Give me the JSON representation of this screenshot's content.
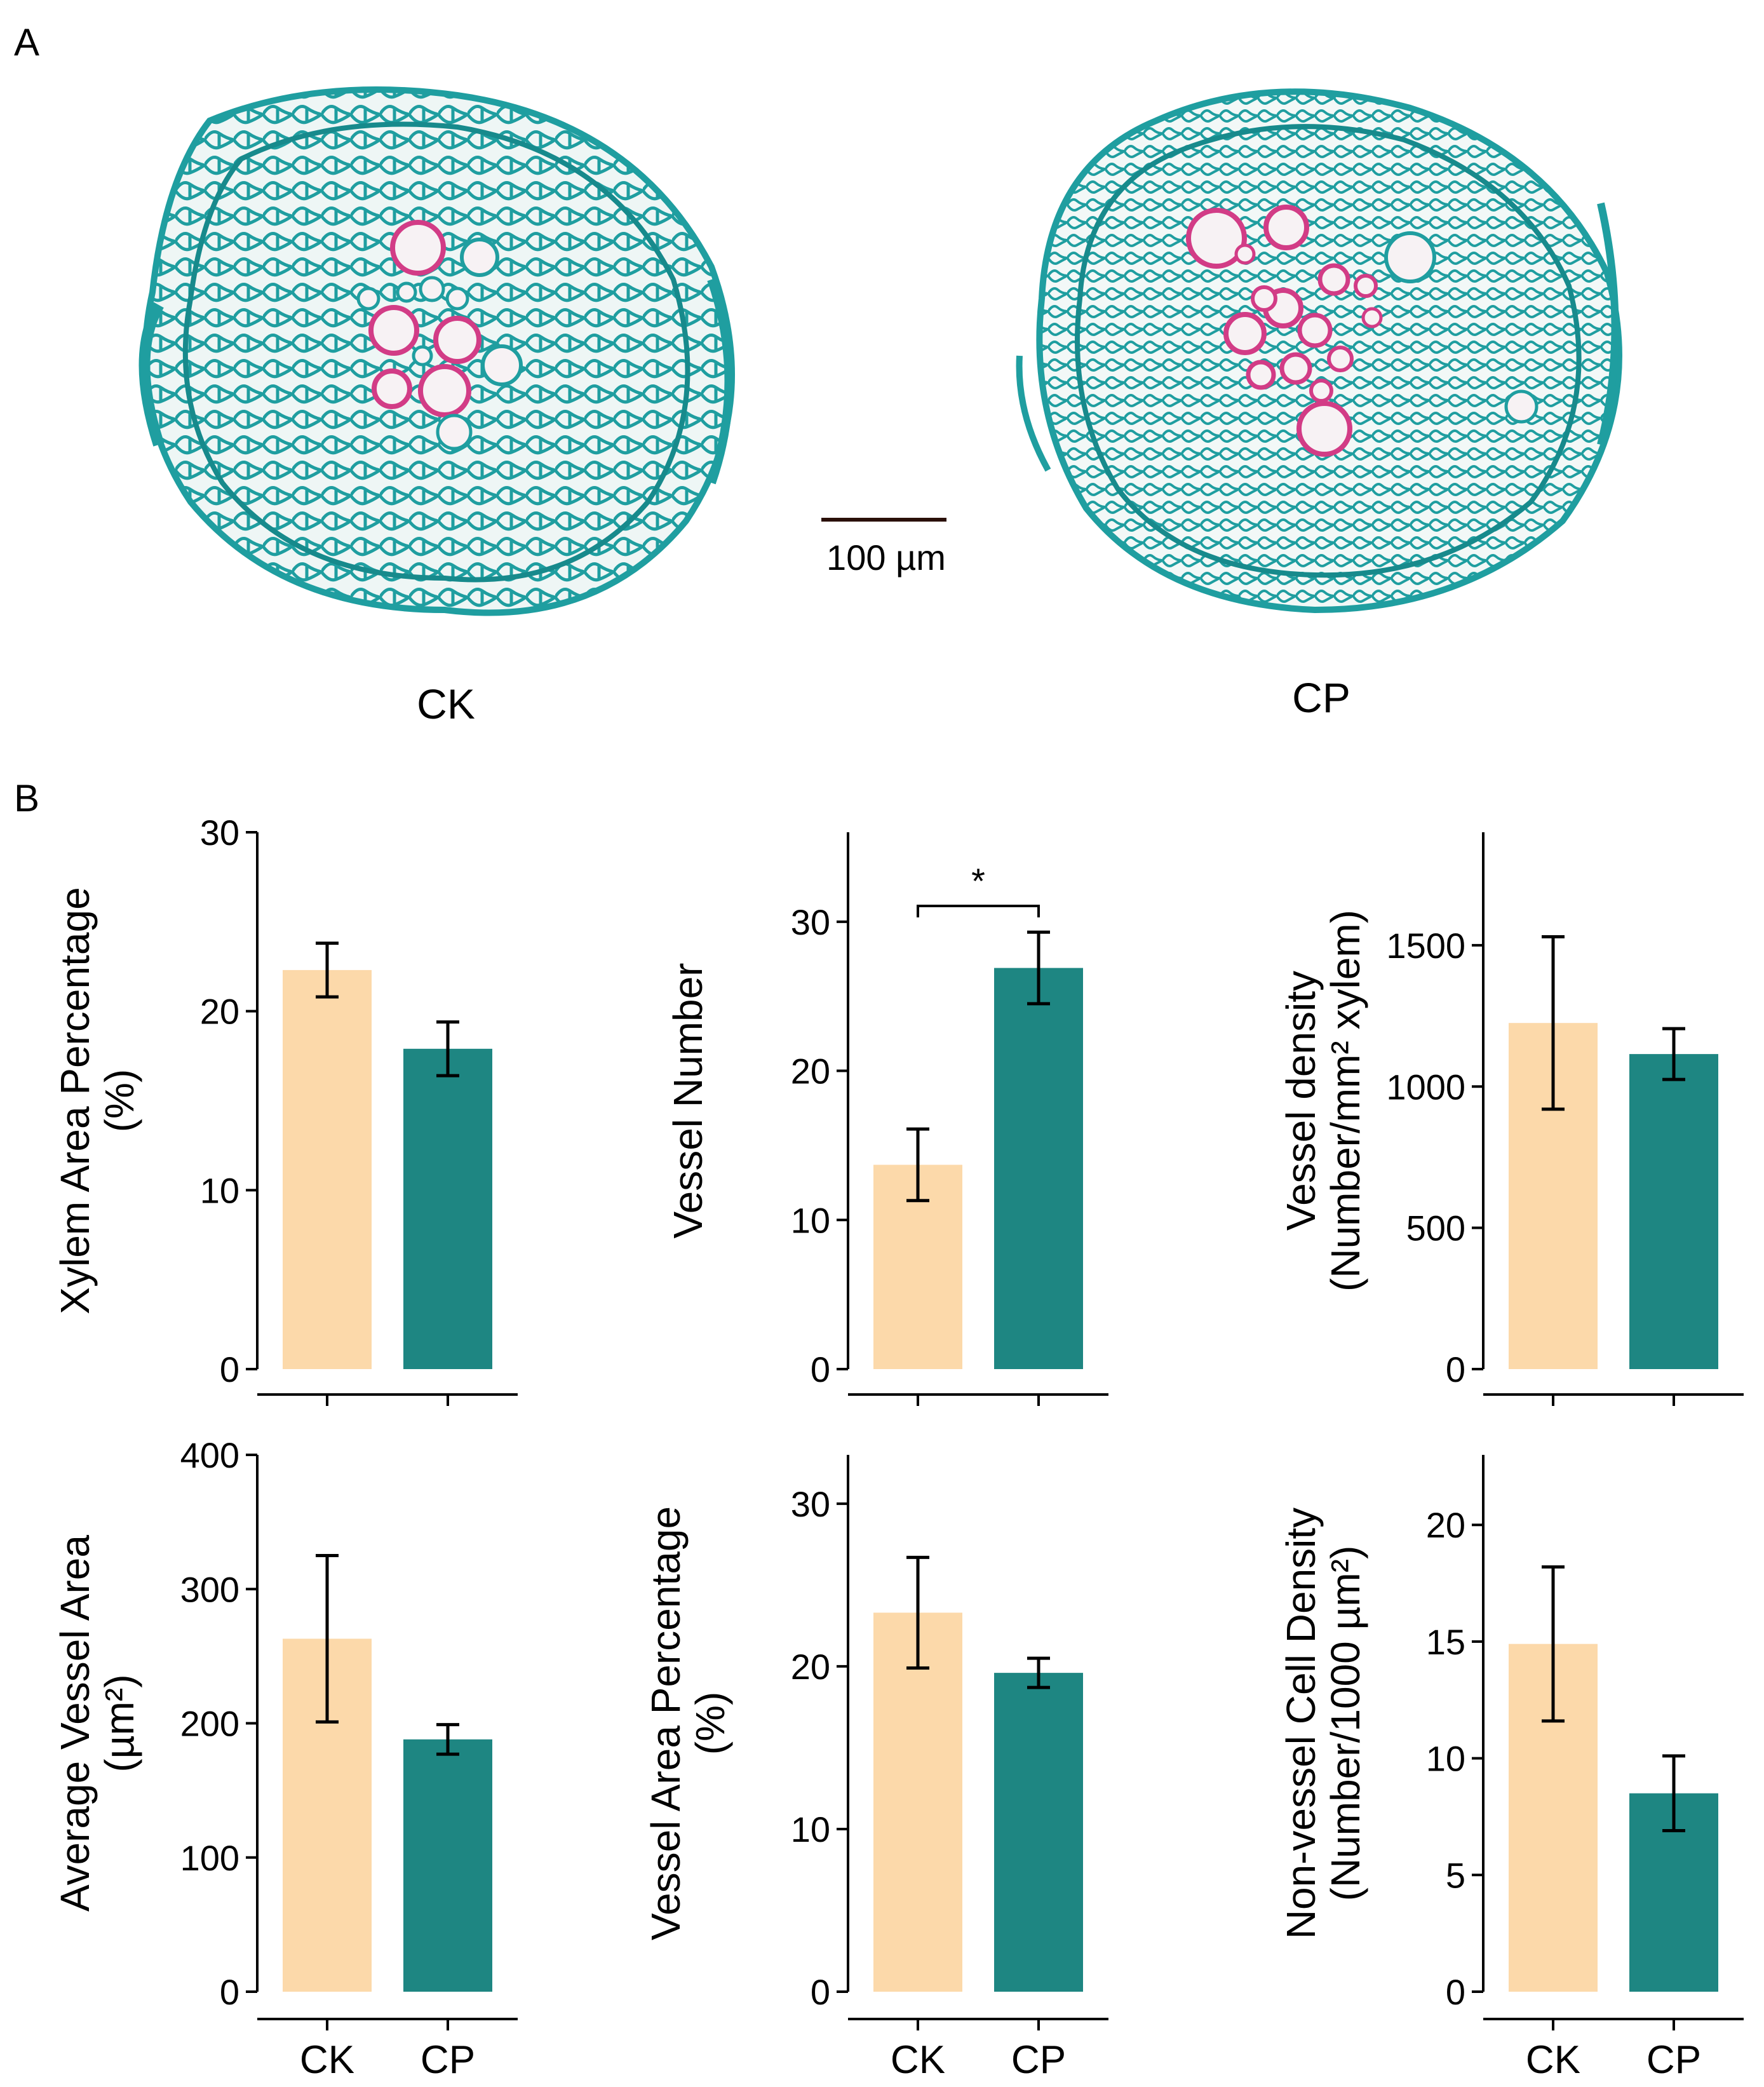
{
  "panel_a": {
    "letter": "A",
    "left_section_label": "CK",
    "right_section_label": "CP",
    "scale_bar_label": "100 µm",
    "colors": {
      "stain_cell_wall": "#1f9ea0",
      "stain_vessel": "#d23c86",
      "cell_fill": "#eef6f5",
      "scale_bar": "#2a0f08"
    }
  },
  "panel_b": {
    "letter": "B",
    "colors": {
      "CK": "#fcd9aa",
      "CP": "#1e8682",
      "axis": "#000000"
    }
  },
  "chart_data": [
    {
      "type": "bar",
      "ylabel": [
        "Xylem Area Percentage",
        "(%)"
      ],
      "categories": [
        "CK",
        "CP"
      ],
      "values": [
        22.3,
        17.9
      ],
      "errors": [
        1.5,
        1.5
      ],
      "ylim": [
        0,
        30
      ],
      "yticks": [
        0,
        10,
        20,
        30
      ],
      "show_xlabels": false,
      "significance": null
    },
    {
      "type": "bar",
      "ylabel": [
        "Vessel Number"
      ],
      "categories": [
        "CK",
        "CP"
      ],
      "values": [
        13.7,
        26.9
      ],
      "errors": [
        2.4,
        2.4
      ],
      "ylim": [
        0,
        36
      ],
      "yticks": [
        0,
        10,
        20,
        30
      ],
      "show_xlabels": false,
      "significance": "*"
    },
    {
      "type": "bar",
      "ylabel": [
        "Vessel density",
        "(Number/mm² xylem)"
      ],
      "categories": [
        "CK",
        "CP"
      ],
      "values": [
        1225,
        1115
      ],
      "errors": [
        305,
        90
      ],
      "ylim": [
        0,
        1900
      ],
      "yticks": [
        0,
        500,
        1000,
        1500
      ],
      "show_xlabels": false,
      "significance": null
    },
    {
      "type": "bar",
      "ylabel": [
        "Average Vessel Area",
        "(µm²)"
      ],
      "categories": [
        "CK",
        "CP"
      ],
      "values": [
        263,
        188
      ],
      "errors": [
        62,
        11
      ],
      "ylim": [
        0,
        400
      ],
      "yticks": [
        0,
        100,
        200,
        300,
        400
      ],
      "show_xlabels": true,
      "significance": null
    },
    {
      "type": "bar",
      "ylabel": [
        "Vessel Area Percentage",
        "(%)"
      ],
      "categories": [
        "CK",
        "CP"
      ],
      "values": [
        23.3,
        19.6
      ],
      "errors": [
        3.4,
        0.9
      ],
      "ylim": [
        0,
        33
      ],
      "yticks": [
        0,
        10,
        20,
        30
      ],
      "show_xlabels": true,
      "significance": null
    },
    {
      "type": "bar",
      "ylabel": [
        "Non-vessel Cell Density",
        "(Number/1000 µm²)"
      ],
      "categories": [
        "CK",
        "CP"
      ],
      "values": [
        14.9,
        8.5
      ],
      "errors": [
        3.3,
        1.6
      ],
      "ylim": [
        0,
        23
      ],
      "yticks": [
        0,
        5,
        10,
        15,
        20
      ],
      "show_xlabels": true,
      "significance": null
    }
  ]
}
